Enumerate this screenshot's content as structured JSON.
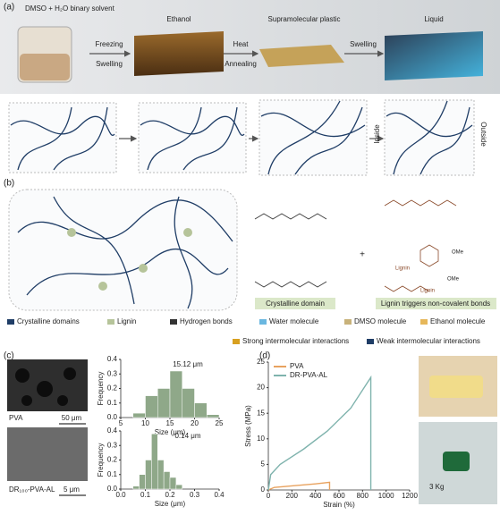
{
  "panel_labels": [
    "(a)",
    "(b)",
    "(c)",
    "(d)"
  ],
  "process": {
    "start": "DMSO + H₂O binary solvent",
    "stages": [
      "Ethanol",
      "Supramolecular plastic",
      "Liquid"
    ],
    "steps": [
      [
        "Freezing",
        "Swelling"
      ],
      [
        "Heat",
        "Annealing"
      ],
      [
        "Swelling"
      ]
    ]
  },
  "schematic": {
    "inside": "Inside",
    "outside": "Outside"
  },
  "structures": {
    "crystalline": "Crystalline domain",
    "plus": "+",
    "lignin_bonds": "Lignin triggers non-covalent bonds",
    "groups": [
      "OMe",
      "OMe",
      "Lignin",
      "Lignin"
    ]
  },
  "legend": [
    "Crystalline domains",
    "Lignin",
    "Hydrogen bonds",
    "Water molecule",
    "DMSO molecule",
    "Ethanol molecule",
    "Strong intermolecular interactions",
    "Weak intermolecular interactions"
  ],
  "sem": [
    {
      "label": "PVA",
      "scale": "50 μm"
    },
    {
      "label": "DR₁₀₀-PVA-AL",
      "scale": "5 μm"
    }
  ],
  "photo_label": "3 Kg",
  "chart_data": [
    {
      "type": "histogram",
      "annotation": "15.12 μm",
      "bins": [
        7.5,
        10,
        12.5,
        15,
        17.5,
        20,
        22.5,
        25
      ],
      "values": [
        0.03,
        0.15,
        0.2,
        0.32,
        0.2,
        0.1,
        0.02
      ],
      "color": "#8fa889",
      "xlim": [
        5,
        25
      ],
      "xticks": [
        5,
        10,
        15,
        20,
        25
      ],
      "ylim": [
        0,
        0.4
      ],
      "yticks": [
        {
          "value": 0,
          "label": "0.0"
        },
        0.1,
        0.2,
        0.3,
        0.4
      ],
      "x_label": "Size (μm)",
      "y_label": "Frequency"
    },
    {
      "type": "histogram",
      "annotation": "0.14 μm",
      "bins": [
        0.05,
        0.075,
        0.1,
        0.125,
        0.15,
        0.175,
        0.2,
        0.225,
        0.25
      ],
      "values": [
        0.02,
        0.1,
        0.2,
        0.38,
        0.2,
        0.12,
        0.08,
        0.03
      ],
      "color": "#8fa889",
      "xlim": [
        0,
        0.4
      ],
      "xticks": [
        {
          "value": 0,
          "label": "0.0"
        },
        0.1,
        0.2,
        0.3,
        0.4
      ],
      "ylim": [
        0,
        0.4
      ],
      "yticks": [
        {
          "value": 0,
          "label": "0.0"
        },
        0.1,
        0.2,
        0.3,
        0.4
      ],
      "x_label": "Size (μm)",
      "y_label": "Frequency"
    },
    {
      "type": "line",
      "series": [
        {
          "name": "PVA",
          "color": "#e8a25f",
          "x": [
            0,
            50,
            200,
            400,
            520,
            520
          ],
          "values": [
            0,
            0.5,
            0.8,
            1.2,
            1.5,
            0
          ]
        },
        {
          "name": "DR-PVA-AL",
          "color": "#7fb3ad",
          "x": [
            0,
            20,
            100,
            300,
            500,
            700,
            870,
            870
          ],
          "values": [
            0,
            3,
            5,
            8,
            11.5,
            16,
            22,
            0
          ]
        }
      ],
      "xlim": [
        0,
        1200
      ],
      "xticks": [
        0,
        200,
        400,
        600,
        800,
        1000,
        1200
      ],
      "ylim": [
        0,
        25
      ],
      "yticks": [
        0,
        5,
        10,
        15,
        20,
        25
      ],
      "x_label": "Strain (%)",
      "y_label": "Stress (MPa)",
      "legend": "upper left"
    }
  ]
}
